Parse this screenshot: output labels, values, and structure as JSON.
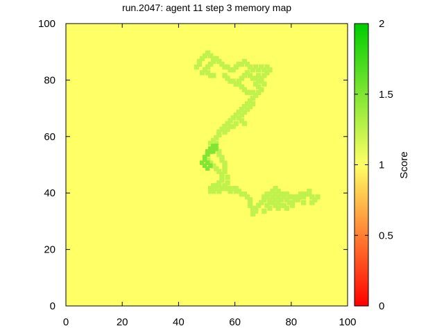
{
  "chart_data": {
    "type": "heatmap",
    "title": "run.2047: agent 11 step 3 memory map",
    "xlabel": "",
    "ylabel": "",
    "xlim": [
      0,
      100
    ],
    "ylim": [
      0,
      100
    ],
    "x_ticks": [
      "0",
      "20",
      "40",
      "60",
      "80",
      "100"
    ],
    "y_ticks": [
      "0",
      "20",
      "40",
      "60",
      "80",
      "100"
    ],
    "background_value": 1.0,
    "colorbar": {
      "label": "Score",
      "range": [
        0,
        2
      ],
      "ticks": [
        "0",
        "0.5",
        "1",
        "1.5",
        "2"
      ],
      "colors": [
        "#ff0000",
        "#ffff66",
        "#00cc00"
      ]
    },
    "path_value": 1.25,
    "hot_value": 1.5,
    "path_cells": [
      [
        46,
        85
      ],
      [
        47,
        86
      ],
      [
        47,
        87
      ],
      [
        48,
        88
      ],
      [
        49,
        89
      ],
      [
        50,
        90
      ],
      [
        51,
        89
      ],
      [
        52,
        88
      ],
      [
        53,
        88
      ],
      [
        54,
        87
      ],
      [
        55,
        86
      ],
      [
        56,
        85
      ],
      [
        57,
        85
      ],
      [
        58,
        84
      ],
      [
        59,
        84
      ],
      [
        60,
        85
      ],
      [
        61,
        86
      ],
      [
        62,
        86
      ],
      [
        63,
        87
      ],
      [
        64,
        86
      ],
      [
        65,
        85
      ],
      [
        66,
        84
      ],
      [
        67,
        85
      ],
      [
        68,
        84
      ],
      [
        69,
        85
      ],
      [
        70,
        84
      ],
      [
        71,
        85
      ],
      [
        72,
        84
      ],
      [
        71,
        83
      ],
      [
        70,
        82
      ],
      [
        69,
        81
      ],
      [
        68,
        80
      ],
      [
        67,
        79
      ],
      [
        68,
        78
      ],
      [
        69,
        77
      ],
      [
        68,
        76
      ],
      [
        67,
        75
      ],
      [
        66,
        74
      ],
      [
        65,
        73
      ],
      [
        64,
        72
      ],
      [
        63,
        71
      ],
      [
        62,
        70
      ],
      [
        61,
        69
      ],
      [
        60,
        68
      ],
      [
        59,
        67
      ],
      [
        58,
        66
      ],
      [
        57,
        65
      ],
      [
        56,
        64
      ],
      [
        55,
        63
      ],
      [
        54,
        62
      ],
      [
        54,
        61
      ],
      [
        53,
        60
      ],
      [
        52,
        59
      ],
      [
        51,
        58
      ],
      [
        52,
        57
      ],
      [
        53,
        56
      ],
      [
        54,
        55
      ],
      [
        54,
        54
      ],
      [
        55,
        53
      ],
      [
        55,
        52
      ],
      [
        56,
        51
      ],
      [
        56,
        50
      ],
      [
        56,
        49
      ],
      [
        56,
        48
      ],
      [
        55,
        47
      ],
      [
        55,
        46
      ],
      [
        55,
        45
      ],
      [
        54,
        44
      ],
      [
        54,
        43
      ],
      [
        53,
        42
      ],
      [
        52,
        42
      ],
      [
        51,
        42
      ],
      [
        52,
        43
      ],
      [
        53,
        43
      ],
      [
        55,
        42
      ],
      [
        56,
        42
      ],
      [
        57,
        42
      ],
      [
        58,
        42
      ],
      [
        59,
        42
      ],
      [
        60,
        42
      ],
      [
        61,
        41
      ],
      [
        62,
        40
      ],
      [
        63,
        40
      ],
      [
        64,
        39
      ],
      [
        65,
        38
      ],
      [
        65,
        37
      ],
      [
        65,
        36
      ],
      [
        66,
        35
      ],
      [
        66,
        34
      ],
      [
        67,
        35
      ],
      [
        68,
        36
      ],
      [
        69,
        37
      ],
      [
        70,
        38
      ],
      [
        71,
        39
      ],
      [
        72,
        40
      ],
      [
        73,
        41
      ],
      [
        74,
        42
      ],
      [
        75,
        41
      ],
      [
        76,
        40
      ],
      [
        77,
        39
      ],
      [
        78,
        38
      ],
      [
        79,
        37
      ],
      [
        80,
        37
      ],
      [
        81,
        38
      ],
      [
        82,
        38
      ],
      [
        83,
        39
      ],
      [
        84,
        40
      ],
      [
        85,
        40
      ],
      [
        86,
        40
      ],
      [
        87,
        39
      ],
      [
        88,
        38
      ],
      [
        86,
        41
      ],
      [
        73,
        37
      ],
      [
        74,
        36
      ],
      [
        75,
        35
      ],
      [
        76,
        36
      ],
      [
        77,
        36
      ],
      [
        71,
        36
      ],
      [
        72,
        35
      ],
      [
        70,
        34
      ],
      [
        48,
        83
      ],
      [
        49,
        84
      ],
      [
        50,
        85
      ],
      [
        51,
        86
      ],
      [
        52,
        87
      ],
      [
        50,
        83
      ],
      [
        51,
        82
      ],
      [
        52,
        82
      ],
      [
        56,
        82
      ],
      [
        57,
        81
      ],
      [
        58,
        80
      ],
      [
        59,
        80
      ],
      [
        60,
        79
      ],
      [
        61,
        79
      ],
      [
        62,
        78
      ],
      [
        63,
        77
      ],
      [
        64,
        76
      ],
      [
        65,
        76
      ],
      [
        66,
        76
      ],
      [
        61,
        80
      ],
      [
        62,
        81
      ],
      [
        63,
        82
      ],
      [
        64,
        83
      ],
      [
        65,
        82
      ],
      [
        66,
        81
      ],
      [
        67,
        81
      ],
      [
        68,
        82
      ],
      [
        69,
        80
      ],
      [
        70,
        79
      ],
      [
        66,
        72
      ],
      [
        65,
        71
      ],
      [
        64,
        70
      ],
      [
        63,
        69
      ],
      [
        62,
        68
      ],
      [
        61,
        67
      ],
      [
        62,
        66
      ],
      [
        63,
        65
      ],
      [
        60,
        65
      ],
      [
        59,
        64
      ],
      [
        58,
        64
      ],
      [
        57,
        63
      ],
      [
        56,
        62
      ],
      [
        53,
        58
      ],
      [
        52,
        56
      ],
      [
        51,
        55
      ],
      [
        50,
        54
      ],
      [
        49,
        53
      ],
      [
        50,
        52
      ],
      [
        51,
        51
      ],
      [
        52,
        50
      ],
      [
        53,
        49
      ],
      [
        54,
        48
      ],
      [
        57,
        46
      ],
      [
        57,
        44
      ],
      [
        56,
        43
      ],
      [
        52,
        41
      ],
      [
        51,
        41
      ],
      [
        54,
        41
      ],
      [
        58,
        41
      ],
      [
        60,
        41
      ],
      [
        72,
        37
      ],
      [
        72,
        38
      ],
      [
        73,
        39
      ],
      [
        74,
        40
      ],
      [
        75,
        39
      ],
      [
        76,
        38
      ],
      [
        75,
        37
      ],
      [
        74,
        38
      ],
      [
        71,
        40
      ],
      [
        70,
        39
      ],
      [
        77,
        40
      ],
      [
        78,
        40
      ],
      [
        79,
        39
      ],
      [
        80,
        39
      ],
      [
        81,
        39
      ],
      [
        82,
        39
      ],
      [
        83,
        40
      ],
      [
        84,
        39
      ],
      [
        89,
        39
      ],
      [
        87,
        37
      ],
      [
        84,
        37
      ],
      [
        80,
        36
      ],
      [
        78,
        35
      ],
      [
        66,
        33
      ],
      [
        67,
        34
      ]
    ],
    "hot_cells": [
      [
        49,
        53
      ],
      [
        50,
        54
      ],
      [
        51,
        55
      ],
      [
        52,
        56
      ],
      [
        50,
        55
      ],
      [
        51,
        56
      ],
      [
        52,
        57
      ],
      [
        53,
        57
      ],
      [
        49,
        52
      ],
      [
        50,
        51
      ],
      [
        49,
        50
      ],
      [
        50,
        49
      ],
      [
        51,
        50
      ],
      [
        52,
        55
      ],
      [
        53,
        56
      ],
      [
        48,
        51
      ]
    ]
  }
}
